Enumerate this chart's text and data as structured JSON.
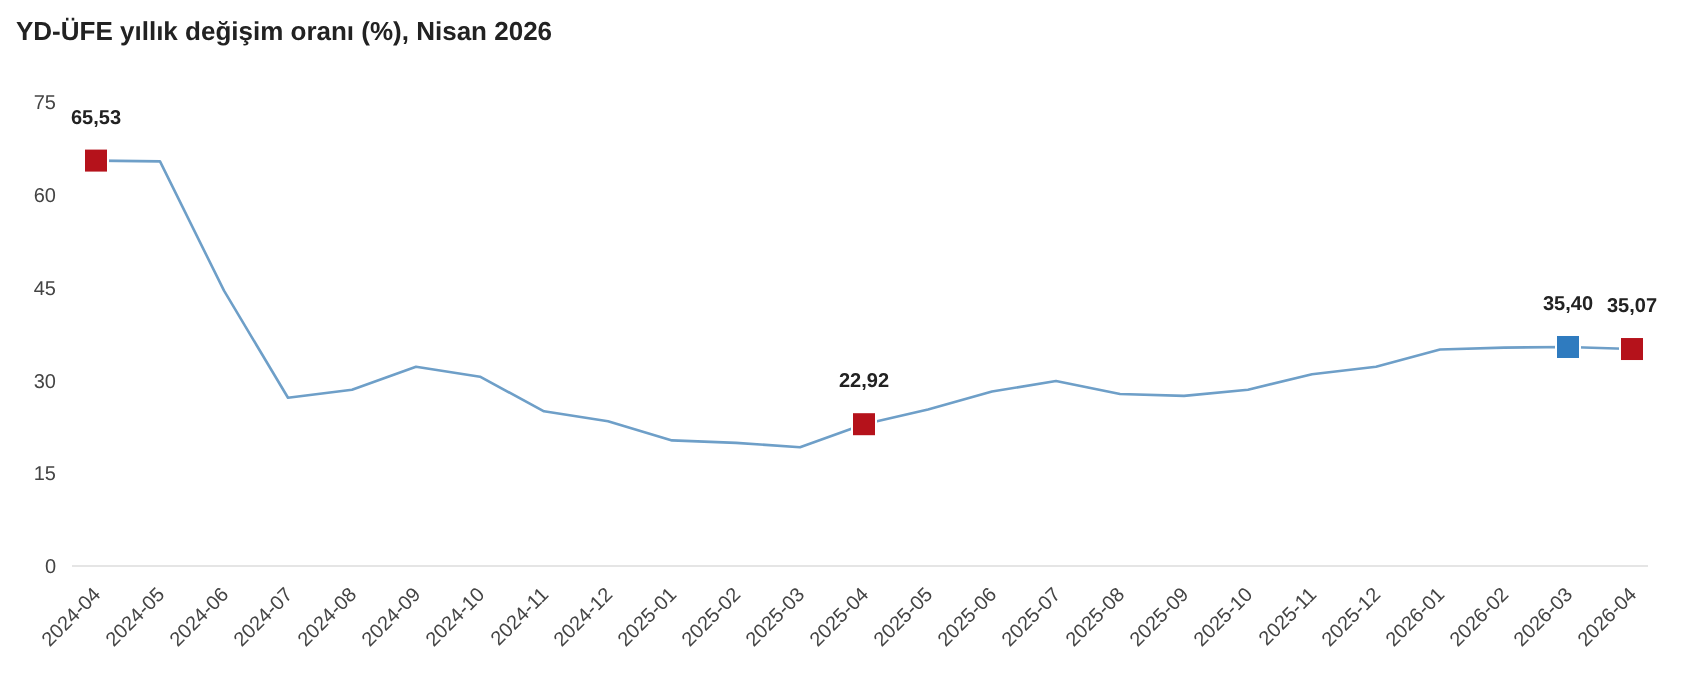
{
  "chart_data": {
    "type": "line",
    "title": "YD-ÜFE yıllık değişim oranı (%), Nisan 2026",
    "categories": [
      "2024-04",
      "2024-05",
      "2024-06",
      "2024-07",
      "2024-08",
      "2024-09",
      "2024-10",
      "2024-11",
      "2024-12",
      "2025-01",
      "2025-02",
      "2025-03",
      "2025-04",
      "2025-05",
      "2025-06",
      "2025-07",
      "2025-08",
      "2025-09",
      "2025-10",
      "2025-11",
      "2025-12",
      "2026-01",
      "2026-02",
      "2026-03",
      "2026-04"
    ],
    "series": [
      {
        "color": "#6e9fc8",
        "marker": "none",
        "values": [
          65.53,
          65.4,
          44.5,
          27.2,
          28.5,
          32.2,
          30.6,
          25.0,
          23.4,
          20.3,
          19.9,
          19.2,
          22.92,
          25.3,
          28.2,
          29.9,
          27.8,
          27.5,
          28.5,
          31.0,
          32.2,
          35.0,
          35.3,
          35.4,
          35.07
        ]
      },
      {
        "type": "scatter",
        "marker": "square",
        "values": [
          65.53,
          null,
          null,
          null,
          null,
          null,
          null,
          null,
          null,
          null,
          null,
          null,
          22.92,
          null,
          null,
          null,
          null,
          null,
          null,
          null,
          null,
          null,
          null,
          35.4,
          35.07
        ],
        "colors": [
          "#b5121b",
          null,
          null,
          null,
          null,
          null,
          null,
          null,
          null,
          null,
          null,
          null,
          "#b5121b",
          null,
          null,
          null,
          null,
          null,
          null,
          null,
          null,
          null,
          null,
          "#2f7bbf",
          "#b5121b"
        ],
        "value_labels": [
          "65,53",
          null,
          null,
          null,
          null,
          null,
          null,
          null,
          null,
          null,
          null,
          null,
          "22,92",
          null,
          null,
          null,
          null,
          null,
          null,
          null,
          null,
          null,
          null,
          "35,40",
          "35,07"
        ]
      }
    ],
    "ylim": [
      0,
      75
    ],
    "yticks": [
      0,
      15,
      30,
      45,
      60,
      75
    ]
  }
}
